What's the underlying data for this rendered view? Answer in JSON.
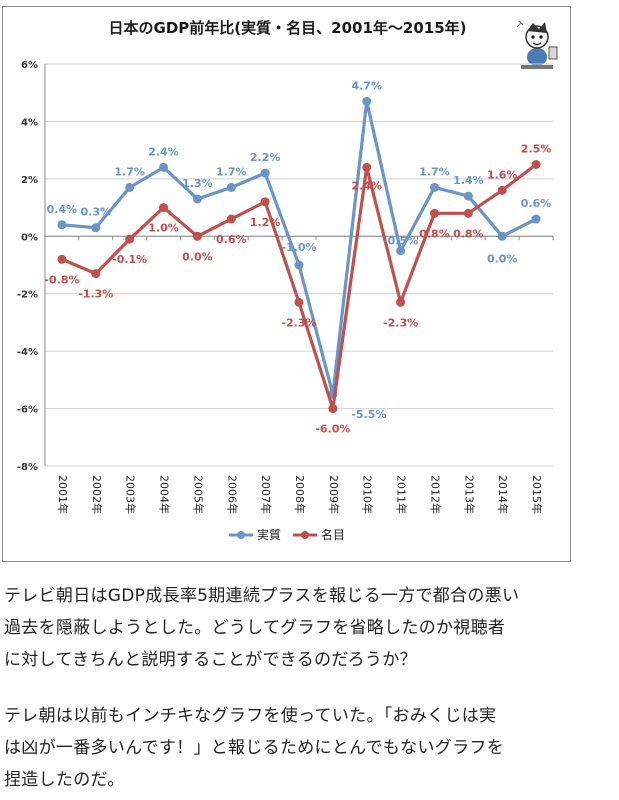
{
  "chart_data": {
    "type": "line",
    "title": "日本のGDP前年比(実質・名目、2001年～2015年)",
    "categories": [
      "2001年",
      "2002年",
      "2003年",
      "2004年",
      "2005年",
      "2006年",
      "2007年",
      "2008年",
      "2009年",
      "2010年",
      "2011年",
      "2012年",
      "2013年",
      "2014年",
      "2015年"
    ],
    "ylim": [
      -8,
      6
    ],
    "yticks": [
      "-8%",
      "-6%",
      "-4%",
      "-2%",
      "0%",
      "2%",
      "4%",
      "6%"
    ],
    "ytick_values": [
      -8,
      -6,
      -4,
      -2,
      0,
      2,
      4,
      6
    ],
    "grid": true,
    "legend_position": "bottom",
    "series": [
      {
        "name": "実質",
        "color": "#6a95c6",
        "values": [
          0.4,
          0.3,
          1.7,
          2.4,
          1.3,
          1.7,
          2.2,
          -1.0,
          -5.5,
          4.7,
          -0.5,
          1.7,
          1.4,
          0.0,
          0.6
        ],
        "labels": [
          "0.4%",
          "0.3%",
          "1.7%",
          "2.4%",
          "1.3%",
          "1.7%",
          "2.2%",
          "-1.0%",
          "-5.5%",
          "4.7%",
          "-0.5%",
          "1.7%",
          "1.4%",
          "0.0%",
          "0.6%"
        ]
      },
      {
        "name": "名目",
        "color": "#c0504d",
        "values": [
          -0.8,
          -1.3,
          -0.1,
          1.0,
          0.0,
          0.6,
          1.2,
          -2.3,
          -6.0,
          2.4,
          -2.3,
          0.8,
          0.8,
          1.6,
          2.5
        ],
        "labels": [
          "-0.8%",
          "-1.3%",
          "-0.1%",
          "1.0%",
          "0.0%",
          "0.6%",
          "1.2%",
          "-2.3%",
          "-6.0%",
          "2.4%",
          "-2.3%",
          "0.8%",
          "0.8%",
          "1.6%",
          "2.5%"
        ]
      }
    ]
  },
  "article": {
    "paragraph1": [
      "テレビ朝日はGDP成長率5期連続プラスを報じる一方で都合の悪い",
      "過去を隠蔽しようとした。どうしてグラフを省略したのか視聴者",
      "に対してきちんと説明することができるのだろうか？"
    ],
    "paragraph2": [
      "テレ朝は以前もインチキなグラフを使っていた。「おみくじは実",
      "は凶が一番多いんです！」と報じるためにとんでもないグラフを",
      "捏造したのだ。"
    ]
  }
}
